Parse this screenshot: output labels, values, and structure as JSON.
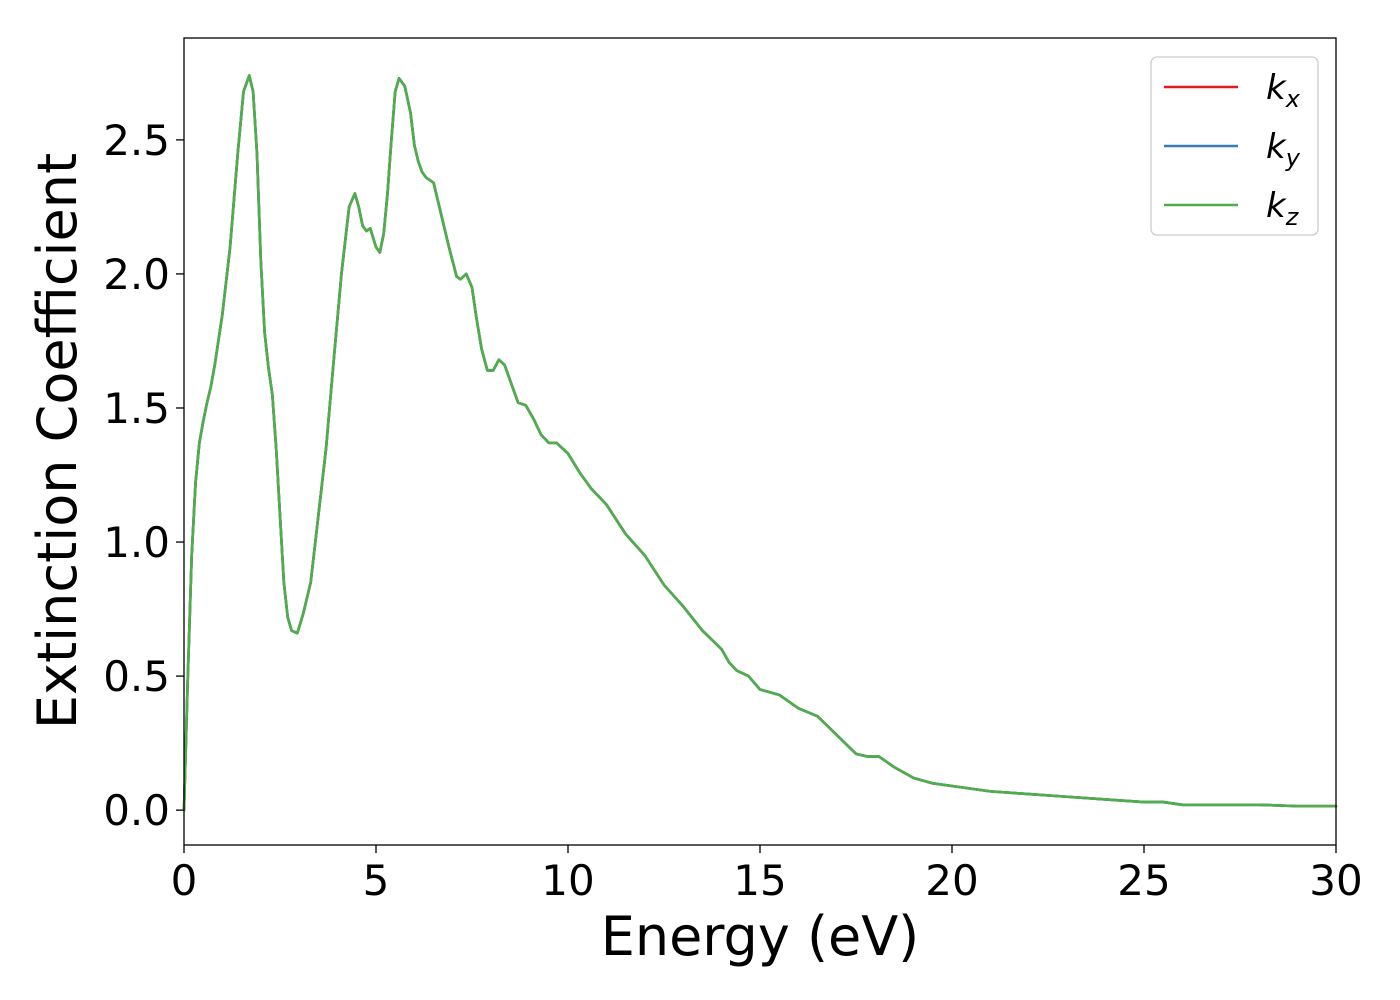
{
  "chart_data": {
    "type": "line",
    "title": "",
    "xlabel": "Energy (eV)",
    "ylabel": "Extinction Coefficient",
    "xlim": [
      0,
      30
    ],
    "ylim": [
      -0.13,
      2.88
    ],
    "xticks": [
      0,
      5,
      10,
      15,
      20,
      25,
      30
    ],
    "xtick_labels": [
      "0",
      "5",
      "10",
      "15",
      "20",
      "25",
      "30"
    ],
    "yticks": [
      0.0,
      0.5,
      1.0,
      1.5,
      2.0,
      2.5
    ],
    "ytick_labels": [
      "0.0",
      "0.5",
      "1.0",
      "1.5",
      "2.0",
      "2.5"
    ],
    "grid": false,
    "legend_position": "top-right",
    "x": [
      0,
      0.1,
      0.2,
      0.3,
      0.4,
      0.5,
      0.6,
      0.7,
      0.8,
      1.0,
      1.2,
      1.4,
      1.55,
      1.7,
      1.8,
      1.9,
      2.0,
      2.1,
      2.2,
      2.3,
      2.4,
      2.5,
      2.6,
      2.7,
      2.8,
      2.95,
      3.1,
      3.3,
      3.5,
      3.7,
      3.9,
      4.1,
      4.3,
      4.45,
      4.55,
      4.65,
      4.75,
      4.85,
      5.0,
      5.1,
      5.2,
      5.3,
      5.4,
      5.5,
      5.6,
      5.75,
      5.9,
      6.0,
      6.1,
      6.2,
      6.3,
      6.5,
      6.7,
      6.9,
      7.1,
      7.2,
      7.35,
      7.5,
      7.6,
      7.75,
      7.9,
      8.05,
      8.2,
      8.35,
      8.5,
      8.7,
      8.9,
      9.1,
      9.3,
      9.5,
      9.7,
      10.0,
      10.3,
      10.6,
      11.0,
      11.5,
      12.0,
      12.5,
      13.0,
      13.5,
      14.0,
      14.2,
      14.4,
      14.7,
      15.0,
      15.5,
      16.0,
      16.5,
      17.0,
      17.5,
      17.8,
      18.1,
      18.5,
      19.0,
      19.5,
      20.0,
      21.0,
      22.0,
      23.0,
      24.0,
      25.0,
      25.5,
      26.0,
      27.0,
      28.0,
      29.0,
      30.0
    ],
    "series": [
      {
        "name": "k_x",
        "color": "#e41a1c",
        "values": [
          0.0,
          0.5,
          0.95,
          1.22,
          1.37,
          1.45,
          1.52,
          1.58,
          1.66,
          1.85,
          2.1,
          2.45,
          2.68,
          2.74,
          2.68,
          2.45,
          2.05,
          1.78,
          1.65,
          1.55,
          1.35,
          1.1,
          0.85,
          0.72,
          0.67,
          0.66,
          0.73,
          0.85,
          1.1,
          1.35,
          1.68,
          2.0,
          2.25,
          2.3,
          2.25,
          2.18,
          2.16,
          2.17,
          2.1,
          2.08,
          2.15,
          2.3,
          2.5,
          2.68,
          2.73,
          2.7,
          2.6,
          2.48,
          2.42,
          2.38,
          2.36,
          2.34,
          2.22,
          2.1,
          1.99,
          1.98,
          2.0,
          1.95,
          1.85,
          1.72,
          1.64,
          1.64,
          1.68,
          1.66,
          1.6,
          1.52,
          1.51,
          1.46,
          1.4,
          1.37,
          1.37,
          1.33,
          1.26,
          1.2,
          1.14,
          1.03,
          0.95,
          0.84,
          0.76,
          0.67,
          0.6,
          0.55,
          0.52,
          0.5,
          0.45,
          0.43,
          0.38,
          0.35,
          0.28,
          0.21,
          0.2,
          0.2,
          0.16,
          0.12,
          0.1,
          0.09,
          0.07,
          0.06,
          0.05,
          0.04,
          0.03,
          0.03,
          0.02,
          0.02,
          0.02,
          0.015,
          0.015
        ]
      },
      {
        "name": "k_y",
        "color": "#377eb8",
        "values": [
          0.0,
          0.5,
          0.95,
          1.22,
          1.37,
          1.45,
          1.52,
          1.58,
          1.66,
          1.85,
          2.1,
          2.45,
          2.68,
          2.74,
          2.68,
          2.45,
          2.05,
          1.78,
          1.65,
          1.55,
          1.35,
          1.1,
          0.85,
          0.72,
          0.67,
          0.66,
          0.73,
          0.85,
          1.1,
          1.35,
          1.68,
          2.0,
          2.25,
          2.3,
          2.25,
          2.18,
          2.16,
          2.17,
          2.1,
          2.08,
          2.15,
          2.3,
          2.5,
          2.68,
          2.73,
          2.7,
          2.6,
          2.48,
          2.42,
          2.38,
          2.36,
          2.34,
          2.22,
          2.1,
          1.99,
          1.98,
          2.0,
          1.95,
          1.85,
          1.72,
          1.64,
          1.64,
          1.68,
          1.66,
          1.6,
          1.52,
          1.51,
          1.46,
          1.4,
          1.37,
          1.37,
          1.33,
          1.26,
          1.2,
          1.14,
          1.03,
          0.95,
          0.84,
          0.76,
          0.67,
          0.6,
          0.55,
          0.52,
          0.5,
          0.45,
          0.43,
          0.38,
          0.35,
          0.28,
          0.21,
          0.2,
          0.2,
          0.16,
          0.12,
          0.1,
          0.09,
          0.07,
          0.06,
          0.05,
          0.04,
          0.03,
          0.03,
          0.02,
          0.02,
          0.02,
          0.015,
          0.015
        ]
      },
      {
        "name": "k_z",
        "color": "#4daf4a",
        "values": [
          0.0,
          0.5,
          0.95,
          1.22,
          1.37,
          1.45,
          1.52,
          1.58,
          1.66,
          1.85,
          2.1,
          2.45,
          2.68,
          2.74,
          2.68,
          2.45,
          2.05,
          1.78,
          1.65,
          1.55,
          1.35,
          1.1,
          0.85,
          0.72,
          0.67,
          0.66,
          0.73,
          0.85,
          1.1,
          1.35,
          1.68,
          2.0,
          2.25,
          2.3,
          2.25,
          2.18,
          2.16,
          2.17,
          2.1,
          2.08,
          2.15,
          2.3,
          2.5,
          2.68,
          2.73,
          2.7,
          2.6,
          2.48,
          2.42,
          2.38,
          2.36,
          2.34,
          2.22,
          2.1,
          1.99,
          1.98,
          2.0,
          1.95,
          1.85,
          1.72,
          1.64,
          1.64,
          1.68,
          1.66,
          1.6,
          1.52,
          1.51,
          1.46,
          1.4,
          1.37,
          1.37,
          1.33,
          1.26,
          1.2,
          1.14,
          1.03,
          0.95,
          0.84,
          0.76,
          0.67,
          0.6,
          0.55,
          0.52,
          0.5,
          0.45,
          0.43,
          0.38,
          0.35,
          0.28,
          0.21,
          0.2,
          0.2,
          0.16,
          0.12,
          0.1,
          0.09,
          0.07,
          0.06,
          0.05,
          0.04,
          0.03,
          0.03,
          0.02,
          0.02,
          0.02,
          0.015,
          0.015
        ]
      }
    ],
    "legend": [
      {
        "base": "k",
        "sub": "x",
        "color": "#e41a1c"
      },
      {
        "base": "k",
        "sub": "y",
        "color": "#377eb8"
      },
      {
        "base": "k",
        "sub": "z",
        "color": "#4daf4a"
      }
    ]
  }
}
